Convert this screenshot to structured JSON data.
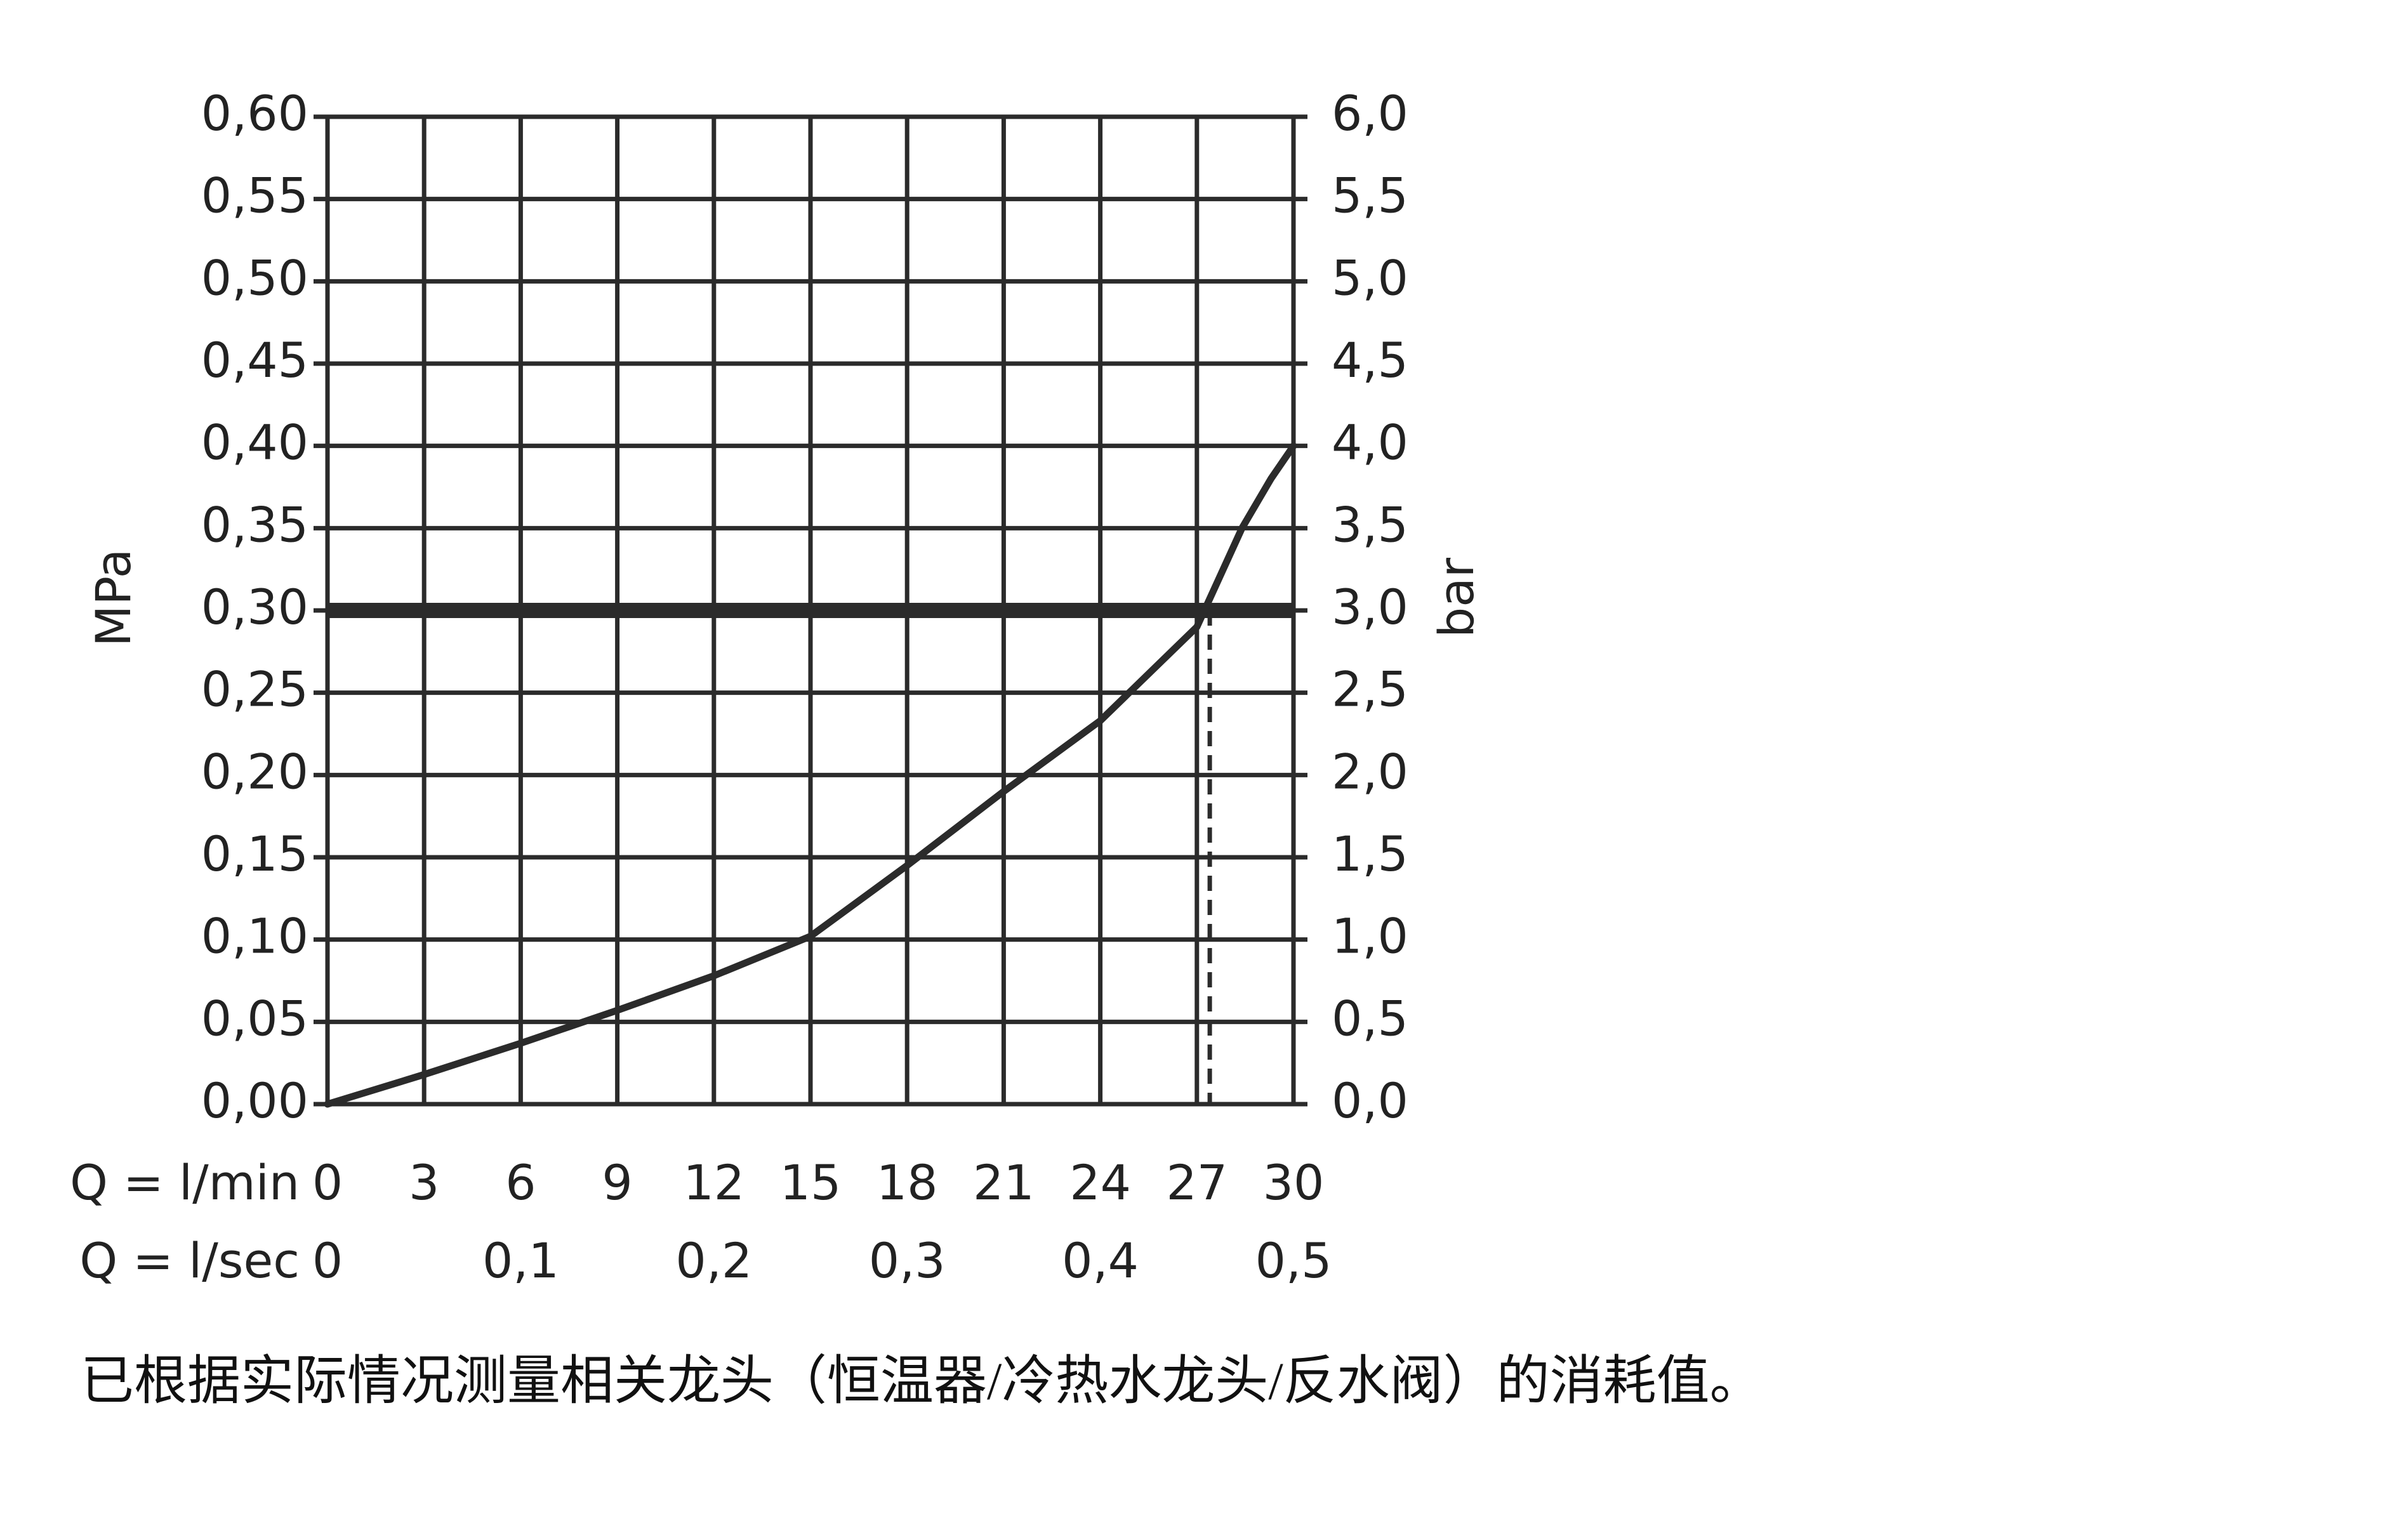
{
  "chart_data": {
    "type": "line",
    "ylabel": "MPa",
    "y2label": "bar",
    "xlabel": "Q = l/min",
    "x2label": "Q = l/sec",
    "caption": "已根据实际情况测量相关龙头（恒温器/冷热水龙头/反水阀）的消耗值。",
    "xlim": [
      0,
      30
    ],
    "xticks": [
      0,
      3,
      6,
      9,
      12,
      15,
      18,
      21,
      24,
      27,
      30
    ],
    "x2lim": [
      0,
      0.5
    ],
    "x2ticks": [
      0,
      {
        "value": 0.1,
        "label": "0,1"
      },
      {
        "value": 0.2,
        "label": "0,2"
      },
      {
        "value": 0.3,
        "label": "0,3"
      },
      {
        "value": 0.4,
        "label": "0,4"
      },
      {
        "value": 0.5,
        "label": "0,5"
      }
    ],
    "ylim": [
      0,
      0.6
    ],
    "yticks": [
      {
        "value": 0,
        "label": "0,00"
      },
      {
        "value": 0.05,
        "label": "0,05"
      },
      {
        "value": 0.1,
        "label": "0,10"
      },
      {
        "value": 0.15,
        "label": "0,15"
      },
      {
        "value": 0.2,
        "label": "0,20"
      },
      {
        "value": 0.25,
        "label": "0,25"
      },
      {
        "value": 0.3,
        "label": "0,30"
      },
      {
        "value": 0.35,
        "label": "0,35"
      },
      {
        "value": 0.4,
        "label": "0,40"
      },
      {
        "value": 0.45,
        "label": "0,45"
      },
      {
        "value": 0.5,
        "label": "0,50"
      },
      {
        "value": 0.55,
        "label": "0,55"
      },
      {
        "value": 0.6,
        "label": "0,60"
      }
    ],
    "y2lim": [
      0,
      6
    ],
    "y2ticks": [
      {
        "value": 0,
        "label": "0,0"
      },
      {
        "value": 0.5,
        "label": "0,5"
      },
      {
        "value": 1,
        "label": "1,0"
      },
      {
        "value": 1.5,
        "label": "1,5"
      },
      {
        "value": 2,
        "label": "2,0"
      },
      {
        "value": 2.5,
        "label": "2,5"
      },
      {
        "value": 3,
        "label": "3,0"
      },
      {
        "value": 3.5,
        "label": "3,5"
      },
      {
        "value": 4,
        "label": "4,0"
      },
      {
        "value": 4.5,
        "label": "4,5"
      },
      {
        "value": 5,
        "label": "5,0"
      },
      {
        "value": 5.5,
        "label": "5,5"
      },
      {
        "value": 6,
        "label": "6,0"
      }
    ],
    "grid": true,
    "reference_y": 0.3,
    "marker_x": 27.4,
    "series": [
      {
        "color": "#2b2b2b",
        "x": [
          0,
          3,
          6,
          9,
          12,
          15,
          18,
          21,
          24,
          27,
          28.4,
          29.3,
          30
        ],
        "values": [
          0,
          0.018,
          0.037,
          0.057,
          0.078,
          0.102,
          0.145,
          0.19,
          0.233,
          0.29,
          0.35,
          0.38,
          0.4
        ]
      }
    ]
  }
}
